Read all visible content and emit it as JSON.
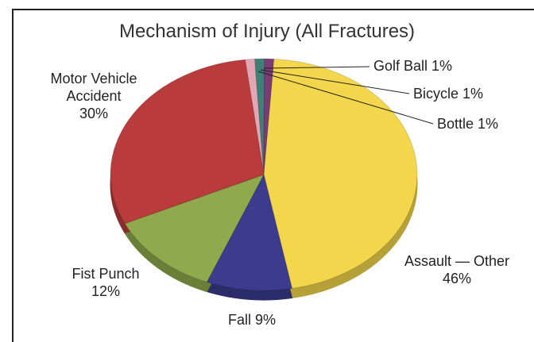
{
  "chart_data": {
    "type": "pie",
    "title": "Mechanism of Injury (All Fractures)",
    "categories": [
      "Bottle",
      "Bicycle",
      "Golf Ball",
      "Assault — Other",
      "Fall",
      "Fist Punch",
      "Motor Vehicle Accident"
    ],
    "values": [
      1,
      1,
      1,
      46,
      9,
      12,
      30
    ],
    "value_labels": [
      "1%",
      "1%",
      "1%",
      "46%",
      "9%",
      "12%",
      "30%"
    ],
    "colors": [
      "#e3a6b4",
      "#3e7f78",
      "#7b3a78",
      "#f3d64c",
      "#3c3b8e",
      "#8fa94c",
      "#b93b3c"
    ]
  }
}
